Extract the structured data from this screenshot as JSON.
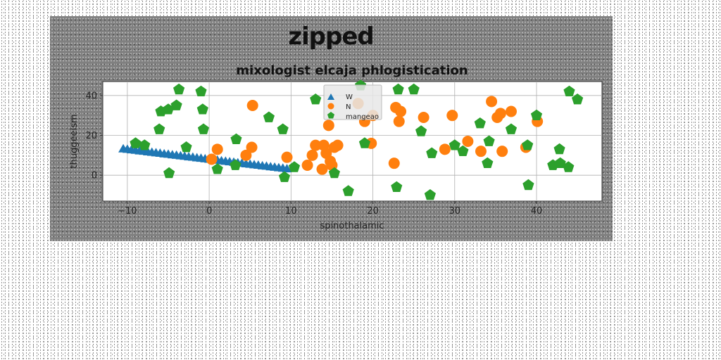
{
  "chart_data": {
    "type": "scatter",
    "suptitle": "zipped",
    "title": "mixologist elcaja phlogistication",
    "xlabel": "spinothalamic",
    "ylabel": "thuggeeism",
    "xlim": [
      -13,
      48
    ],
    "ylim": [
      -13,
      47
    ],
    "xticks": [
      -10,
      0,
      10,
      20,
      30,
      40
    ],
    "yticks": [
      0,
      20,
      40
    ],
    "grid": true,
    "legend_placement": "upper center",
    "series": [
      {
        "name": "W",
        "marker": "triangle",
        "color": "#1f77b4",
        "points": [
          [
            -10.5,
            13.2
          ],
          [
            -10.0,
            13.0
          ],
          [
            -9.5,
            12.7
          ],
          [
            -9.0,
            12.5
          ],
          [
            -8.5,
            12.2
          ],
          [
            -8.0,
            12.0
          ],
          [
            -7.5,
            11.7
          ],
          [
            -7.0,
            11.5
          ],
          [
            -6.5,
            11.2
          ],
          [
            -6.0,
            11.0
          ],
          [
            -5.5,
            10.7
          ],
          [
            -5.0,
            10.5
          ],
          [
            -4.5,
            10.2
          ],
          [
            -4.0,
            10.0
          ],
          [
            -3.5,
            9.7
          ],
          [
            -3.0,
            9.5
          ],
          [
            -2.5,
            9.2
          ],
          [
            -2.0,
            9.0
          ],
          [
            -1.5,
            8.7
          ],
          [
            -1.0,
            8.5
          ],
          [
            -0.5,
            8.2
          ],
          [
            0.0,
            8.0
          ],
          [
            0.5,
            7.7
          ],
          [
            1.0,
            7.5
          ],
          [
            1.5,
            7.2
          ],
          [
            2.0,
            7.0
          ],
          [
            2.5,
            6.7
          ],
          [
            3.0,
            6.5
          ],
          [
            3.5,
            6.2
          ],
          [
            4.0,
            6.0
          ],
          [
            4.5,
            5.7
          ],
          [
            5.0,
            5.5
          ],
          [
            5.5,
            5.2
          ],
          [
            6.0,
            5.0
          ],
          [
            6.5,
            4.7
          ],
          [
            7.0,
            4.5
          ],
          [
            7.5,
            4.2
          ],
          [
            8.0,
            4.0
          ],
          [
            8.5,
            3.7
          ],
          [
            9.0,
            3.5
          ],
          [
            9.5,
            3.2
          ]
        ]
      },
      {
        "name": "N",
        "marker": "circle",
        "color": "#ff7f0e",
        "points": [
          [
            0.3,
            8
          ],
          [
            1.0,
            13
          ],
          [
            4.5,
            10
          ],
          [
            5.2,
            14
          ],
          [
            5.3,
            35
          ],
          [
            9.5,
            9
          ],
          [
            12.0,
            5
          ],
          [
            12.6,
            10
          ],
          [
            13.0,
            15
          ],
          [
            13.8,
            3
          ],
          [
            14.0,
            15
          ],
          [
            14.3,
            11
          ],
          [
            14.6,
            25
          ],
          [
            14.8,
            7
          ],
          [
            15.0,
            5
          ],
          [
            15.3,
            14
          ],
          [
            15.7,
            15
          ],
          [
            18.2,
            36
          ],
          [
            19.0,
            27
          ],
          [
            19.8,
            16
          ],
          [
            20.0,
            30
          ],
          [
            22.6,
            6
          ],
          [
            22.8,
            34
          ],
          [
            23.2,
            27
          ],
          [
            23.4,
            32
          ],
          [
            26.2,
            29
          ],
          [
            28.8,
            13
          ],
          [
            29.7,
            30
          ],
          [
            31.6,
            17
          ],
          [
            33.2,
            12
          ],
          [
            34.5,
            37
          ],
          [
            35.2,
            29
          ],
          [
            35.6,
            31
          ],
          [
            35.8,
            12
          ],
          [
            36.9,
            32
          ],
          [
            38.7,
            14
          ],
          [
            40.1,
            27
          ]
        ]
      },
      {
        "name": "mangeao",
        "marker": "pentagon",
        "color": "#2ca02c",
        "points": [
          [
            -9.0,
            16
          ],
          [
            -7.9,
            15
          ],
          [
            -6.1,
            23
          ],
          [
            -5.9,
            32
          ],
          [
            -5.0,
            33
          ],
          [
            -4.9,
            1
          ],
          [
            -4.0,
            35
          ],
          [
            -3.7,
            43
          ],
          [
            -2.8,
            14
          ],
          [
            -1.0,
            42
          ],
          [
            -0.8,
            33
          ],
          [
            -0.7,
            23
          ],
          [
            1.0,
            3
          ],
          [
            3.2,
            5
          ],
          [
            3.3,
            18
          ],
          [
            7.3,
            29
          ],
          [
            9.0,
            23
          ],
          [
            9.2,
            -1
          ],
          [
            10.4,
            4
          ],
          [
            13.0,
            38
          ],
          [
            15.3,
            1
          ],
          [
            17.0,
            -8
          ],
          [
            18.5,
            45
          ],
          [
            19.0,
            16
          ],
          [
            22.9,
            -6
          ],
          [
            23.1,
            43
          ],
          [
            25.0,
            43
          ],
          [
            25.9,
            22
          ],
          [
            27.0,
            -10
          ],
          [
            27.2,
            11
          ],
          [
            30.0,
            15
          ],
          [
            31.0,
            12
          ],
          [
            33.1,
            26
          ],
          [
            34.0,
            6
          ],
          [
            34.2,
            17
          ],
          [
            36.9,
            23
          ],
          [
            38.9,
            15
          ],
          [
            39.0,
            -5
          ],
          [
            40.0,
            30
          ],
          [
            42.0,
            5
          ],
          [
            42.8,
            13
          ],
          [
            42.9,
            6
          ],
          [
            43.9,
            4
          ],
          [
            44.0,
            42
          ],
          [
            45.0,
            38
          ]
        ]
      }
    ]
  }
}
